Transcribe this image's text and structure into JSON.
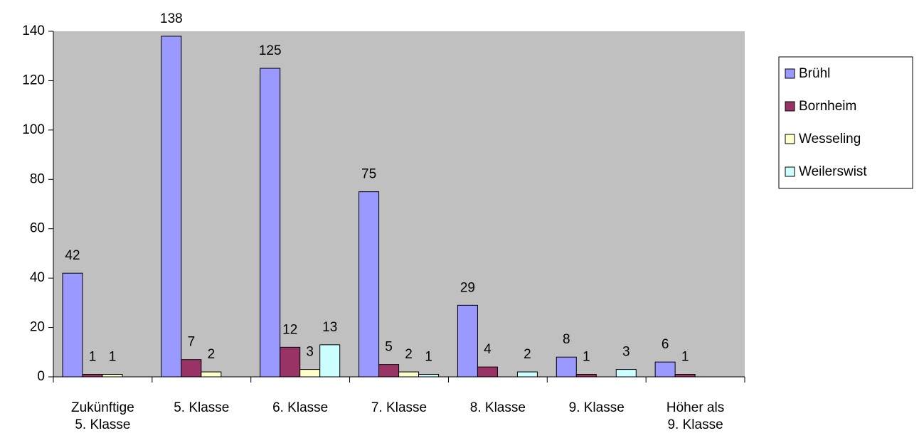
{
  "chart_data": {
    "type": "bar",
    "categories": [
      "Zukünftige 5. Klasse",
      "5. Klasse",
      "6. Klasse",
      "7. Klasse",
      "8. Klasse",
      "9. Klasse",
      "Höher als 9. Klasse"
    ],
    "series": [
      {
        "name": "Brühl",
        "color": "#9999ff",
        "values": [
          42,
          138,
          125,
          75,
          29,
          8,
          6
        ]
      },
      {
        "name": "Bornheim",
        "color": "#993366",
        "values": [
          1,
          7,
          12,
          5,
          4,
          1,
          1
        ]
      },
      {
        "name": "Wesseling",
        "color": "#ffffcc",
        "values": [
          1,
          2,
          3,
          2,
          null,
          null,
          null
        ]
      },
      {
        "name": "Weilerswist",
        "color": "#ccffff",
        "values": [
          null,
          null,
          13,
          1,
          2,
          3,
          null
        ]
      }
    ],
    "ylim": [
      0,
      140
    ],
    "yticks": [
      0,
      20,
      40,
      60,
      80,
      100,
      120,
      140
    ],
    "plot_background": "#c0c0c0",
    "legend": "right"
  }
}
